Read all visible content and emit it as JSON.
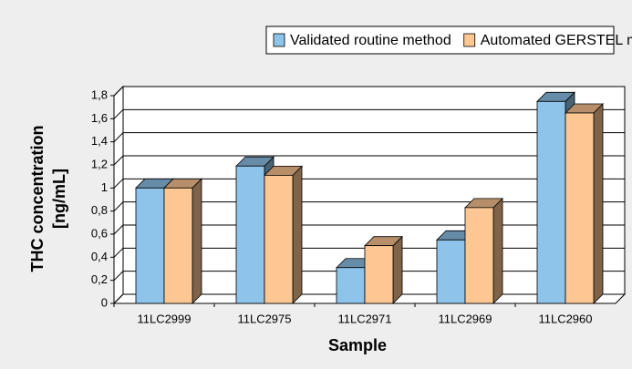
{
  "chart_data": {
    "type": "bar3d",
    "y_label": [
      "THC concentration",
      "[ng/mL]"
    ],
    "x_label": "Sample",
    "categories": [
      "11LC2999",
      "11LC2975",
      "11LC2971",
      "11LC2969",
      "11LC2960"
    ],
    "series": [
      {
        "name": "Validated routine method",
        "color": "#8ec3ea",
        "values": [
          1.0,
          1.19,
          0.31,
          0.55,
          1.75
        ]
      },
      {
        "name": "Automated GERSTEL method",
        "color": "#fdc793",
        "values": [
          1.0,
          1.11,
          0.5,
          0.83,
          1.65
        ]
      }
    ],
    "ylim": [
      0,
      1.8
    ],
    "yticks": [
      0,
      {
        "value": 0.2,
        "label": "0,2"
      },
      {
        "value": 0.4,
        "label": "0,4"
      },
      {
        "value": 0.6,
        "label": "0,6"
      },
      {
        "value": 0.8,
        "label": "0,8"
      },
      1,
      {
        "value": 1.2,
        "label": "1,2"
      },
      {
        "value": 1.4,
        "label": "1,4"
      },
      {
        "value": 1.6,
        "label": "1,6"
      },
      {
        "value": 1.8,
        "label": "1,8"
      }
    ],
    "grid": true
  }
}
